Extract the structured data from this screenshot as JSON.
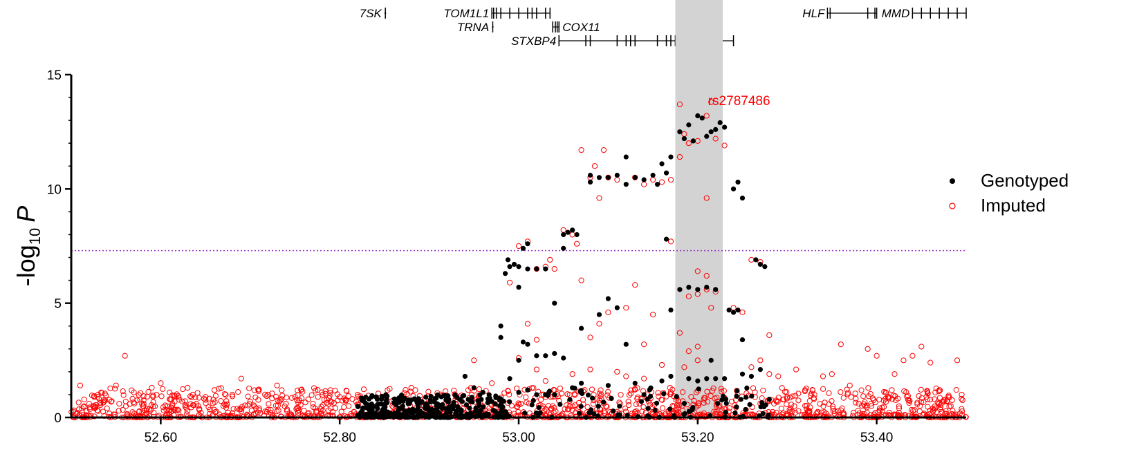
{
  "chart_data": {
    "type": "scatter",
    "title": "",
    "xlabel": "",
    "ylabel": "-log",
    "ylabel_sub": "10",
    "ylabel_italic": "P",
    "xlim": [
      52.5,
      53.5
    ],
    "ylim": [
      0,
      15
    ],
    "x_ticks": [
      52.6,
      52.8,
      53.0,
      53.2,
      53.4
    ],
    "x_tick_labels": [
      "52.60",
      "52.80",
      "53.00",
      "53.20",
      "53.40"
    ],
    "y_ticks": [
      0,
      5,
      10,
      15
    ],
    "y_tick_labels": [
      "0",
      "5",
      "10",
      "15"
    ],
    "threshold": {
      "y": 7.3,
      "color": "#9932cc"
    },
    "highlight_region": {
      "x": [
        53.175,
        53.228
      ],
      "color": "#d3d3d3"
    },
    "annotations": [
      {
        "text": "rs2787486",
        "x": 53.21,
        "y": 13.85,
        "color": "#ff0000"
      }
    ],
    "legend": {
      "position": "right"
    },
    "series": [
      {
        "name": "Genotyped",
        "color": "#000000",
        "marker": "filled-circle",
        "points": [
          [
            52.83,
            0.55
          ],
          [
            52.84,
            0.2
          ],
          [
            52.85,
            0.3
          ],
          [
            52.86,
            0.1
          ],
          [
            52.87,
            0.4
          ],
          [
            52.88,
            0.2
          ],
          [
            52.9,
            0.3
          ],
          [
            52.92,
            0.8
          ],
          [
            52.94,
            1.8
          ],
          [
            52.95,
            1.3
          ],
          [
            52.96,
            1.1
          ],
          [
            52.97,
            0.7
          ],
          [
            52.98,
            4.0
          ],
          [
            52.98,
            3.5
          ],
          [
            52.985,
            6.3
          ],
          [
            52.988,
            6.9
          ],
          [
            52.99,
            6.6
          ],
          [
            52.995,
            6.7
          ],
          [
            53.0,
            5.7
          ],
          [
            53.0,
            2.5
          ],
          [
            52.99,
            1.7
          ],
          [
            53.005,
            7.4
          ],
          [
            53.01,
            7.6
          ],
          [
            53.0,
            6.6
          ],
          [
            53.01,
            6.5
          ],
          [
            53.02,
            6.5
          ],
          [
            53.03,
            6.5
          ],
          [
            53.005,
            3.3
          ],
          [
            53.01,
            3.2
          ],
          [
            53.02,
            2.7
          ],
          [
            53.03,
            2.7
          ],
          [
            53.04,
            2.8
          ],
          [
            53.0,
            1.1
          ],
          [
            53.01,
            1.2
          ],
          [
            53.02,
            1.0
          ],
          [
            53.03,
            1.0
          ],
          [
            53.04,
            1.0
          ],
          [
            53.05,
            8.0
          ],
          [
            53.055,
            8.1
          ],
          [
            53.06,
            8.2
          ],
          [
            53.065,
            8.0
          ],
          [
            53.05,
            7.4
          ],
          [
            53.04,
            5.0
          ],
          [
            53.05,
            2.6
          ],
          [
            53.06,
            1.3
          ],
          [
            53.07,
            3.9
          ],
          [
            53.07,
            1.5
          ],
          [
            53.08,
            10.6
          ],
          [
            53.08,
            10.3
          ],
          [
            53.09,
            10.5
          ],
          [
            53.1,
            10.5
          ],
          [
            53.11,
            10.6
          ],
          [
            53.12,
            11.4
          ],
          [
            53.12,
            10.2
          ],
          [
            53.13,
            10.5
          ],
          [
            53.14,
            10.4
          ],
          [
            53.15,
            10.6
          ],
          [
            53.155,
            10.2
          ],
          [
            53.09,
            4.5
          ],
          [
            53.1,
            5.2
          ],
          [
            53.11,
            4.8
          ],
          [
            53.12,
            3.2
          ],
          [
            53.13,
            1.5
          ],
          [
            53.1,
            1.4
          ],
          [
            53.14,
            1.0
          ],
          [
            53.16,
            11.1
          ],
          [
            53.165,
            10.7
          ],
          [
            53.17,
            11.4
          ],
          [
            53.165,
            7.8
          ],
          [
            53.17,
            4.7
          ],
          [
            53.17,
            1.8
          ],
          [
            53.16,
            1.6
          ],
          [
            53.18,
            12.5
          ],
          [
            53.185,
            12.2
          ],
          [
            53.19,
            12.8
          ],
          [
            53.2,
            13.2
          ],
          [
            53.205,
            13.1
          ],
          [
            53.21,
            12.3
          ],
          [
            53.215,
            12.5
          ],
          [
            53.22,
            12.6
          ],
          [
            53.225,
            12.9
          ],
          [
            53.23,
            12.7
          ],
          [
            53.195,
            12.1
          ],
          [
            53.18,
            5.6
          ],
          [
            53.19,
            5.7
          ],
          [
            53.2,
            5.6
          ],
          [
            53.21,
            5.7
          ],
          [
            53.22,
            5.6
          ],
          [
            53.19,
            1.7
          ],
          [
            53.2,
            1.6
          ],
          [
            53.21,
            1.7
          ],
          [
            53.22,
            1.7
          ],
          [
            53.23,
            1.7
          ],
          [
            53.215,
            2.5
          ],
          [
            53.24,
            10.0
          ],
          [
            53.245,
            10.3
          ],
          [
            53.25,
            9.6
          ],
          [
            53.235,
            4.7
          ],
          [
            53.24,
            4.6
          ],
          [
            53.245,
            4.7
          ],
          [
            53.25,
            3.4
          ],
          [
            53.25,
            1.9
          ],
          [
            53.26,
            1.8
          ],
          [
            53.265,
            6.9
          ],
          [
            53.27,
            6.7
          ],
          [
            53.275,
            6.6
          ],
          [
            53.27,
            2.1
          ],
          [
            53.28,
            0.8
          ]
        ]
      },
      {
        "name": "Imputed",
        "color": "#ff0000",
        "marker": "open-circle",
        "points": [
          [
            52.51,
            1.4
          ],
          [
            52.52,
            0.6
          ],
          [
            52.53,
            1.0
          ],
          [
            52.54,
            0.4
          ],
          [
            52.55,
            1.4
          ],
          [
            52.56,
            2.7
          ],
          [
            52.57,
            1.1
          ],
          [
            52.58,
            0.5
          ],
          [
            52.59,
            1.3
          ],
          [
            52.6,
            1.5
          ],
          [
            52.61,
            0.8
          ],
          [
            52.62,
            0.3
          ],
          [
            52.63,
            1.3
          ],
          [
            52.64,
            0.6
          ],
          [
            52.65,
            0.9
          ],
          [
            52.66,
            1.2
          ],
          [
            52.67,
            0.5
          ],
          [
            52.68,
            1.0
          ],
          [
            52.69,
            1.7
          ],
          [
            52.7,
            0.7
          ],
          [
            52.71,
            0.4
          ],
          [
            52.72,
            1.0
          ],
          [
            52.73,
            1.4
          ],
          [
            52.74,
            0.6
          ],
          [
            52.75,
            0.9
          ],
          [
            52.76,
            0.3
          ],
          [
            52.77,
            0.6
          ],
          [
            52.78,
            1.1
          ],
          [
            52.79,
            0.4
          ],
          [
            52.8,
            0.9
          ],
          [
            52.81,
            0.5
          ],
          [
            52.82,
            1.0
          ],
          [
            52.85,
            0.9
          ],
          [
            52.88,
            1.3
          ],
          [
            52.9,
            0.6
          ],
          [
            52.93,
            0.9
          ],
          [
            52.95,
            2.5
          ],
          [
            52.96,
            0.5
          ],
          [
            52.97,
            1.5
          ],
          [
            52.99,
            5.9
          ],
          [
            53.0,
            7.5
          ],
          [
            53.01,
            7.7
          ],
          [
            53.02,
            6.5
          ],
          [
            53.03,
            6.6
          ],
          [
            53.035,
            6.9
          ],
          [
            53.04,
            6.5
          ],
          [
            53.01,
            4.1
          ],
          [
            53.02,
            3.4
          ],
          [
            53.0,
            2.6
          ],
          [
            53.02,
            2.1
          ],
          [
            53.03,
            1.6
          ],
          [
            53.04,
            1.2
          ],
          [
            53.05,
            8.2
          ],
          [
            53.06,
            8.0
          ],
          [
            53.065,
            7.6
          ],
          [
            53.07,
            6.0
          ],
          [
            53.07,
            11.7
          ],
          [
            53.08,
            10.5
          ],
          [
            53.085,
            11.0
          ],
          [
            53.09,
            9.6
          ],
          [
            53.095,
            11.7
          ],
          [
            53.1,
            10.5
          ],
          [
            53.11,
            10.4
          ],
          [
            53.13,
            10.5
          ],
          [
            53.14,
            10.2
          ],
          [
            53.15,
            10.4
          ],
          [
            53.16,
            10.3
          ],
          [
            53.17,
            10.4
          ],
          [
            53.17,
            7.7
          ],
          [
            53.08,
            3.5
          ],
          [
            53.09,
            4.1
          ],
          [
            53.1,
            4.6
          ],
          [
            53.12,
            4.8
          ],
          [
            53.13,
            5.8
          ],
          [
            53.14,
            3.2
          ],
          [
            53.15,
            4.5
          ],
          [
            53.16,
            2.3
          ],
          [
            53.08,
            2.1
          ],
          [
            53.11,
            2.0
          ],
          [
            53.12,
            1.8
          ],
          [
            53.06,
            1.9
          ],
          [
            53.14,
            1.7
          ],
          [
            53.18,
            13.7
          ],
          [
            53.18,
            11.4
          ],
          [
            53.19,
            12.0
          ],
          [
            53.2,
            12.1
          ],
          [
            53.21,
            13.2
          ],
          [
            53.215,
            13.8
          ],
          [
            53.22,
            12.2
          ],
          [
            53.23,
            11.9
          ],
          [
            53.21,
            9.6
          ],
          [
            53.185,
            12.4
          ],
          [
            53.19,
            5.3
          ],
          [
            53.2,
            5.4
          ],
          [
            53.21,
            5.6
          ],
          [
            53.22,
            5.5
          ],
          [
            53.2,
            6.4
          ],
          [
            53.21,
            6.2
          ],
          [
            53.215,
            4.8
          ],
          [
            53.2,
            3.1
          ],
          [
            53.19,
            2.9
          ],
          [
            53.18,
            3.7
          ],
          [
            53.185,
            2.2
          ],
          [
            53.2,
            2.5
          ],
          [
            53.24,
            4.8
          ],
          [
            53.25,
            4.6
          ],
          [
            53.26,
            6.9
          ],
          [
            53.27,
            6.8
          ],
          [
            53.28,
            3.6
          ],
          [
            53.27,
            2.5
          ],
          [
            53.26,
            2.2
          ],
          [
            53.28,
            1.9
          ],
          [
            53.29,
            1.8
          ],
          [
            53.3,
            0.9
          ],
          [
            53.31,
            2.1
          ],
          [
            53.32,
            1.2
          ],
          [
            53.33,
            0.8
          ],
          [
            53.34,
            1.8
          ],
          [
            53.35,
            1.9
          ],
          [
            53.36,
            3.2
          ],
          [
            53.37,
            1.4
          ],
          [
            53.38,
            0.6
          ],
          [
            53.39,
            3.0
          ],
          [
            53.4,
            2.7
          ],
          [
            53.41,
            1.1
          ],
          [
            53.42,
            1.9
          ],
          [
            53.43,
            2.5
          ],
          [
            53.44,
            2.7
          ],
          [
            53.45,
            3.1
          ],
          [
            53.46,
            2.4
          ],
          [
            53.47,
            1.2
          ],
          [
            53.48,
            0.9
          ],
          [
            53.49,
            2.5
          ],
          [
            53.495,
            1.0
          ]
        ]
      }
    ],
    "genes": [
      {
        "name": "7SK",
        "start": 52.85,
        "end": 52.852,
        "row": 1,
        "exons": [
          52.851
        ],
        "label_side": "left"
      },
      {
        "name": "TOM1L1",
        "start": 52.97,
        "end": 53.035,
        "row": 1,
        "exons": [
          52.97,
          52.972,
          52.975,
          52.98,
          52.99,
          53.0,
          53.01,
          53.015,
          53.02,
          53.03,
          53.035
        ],
        "label_side": "left"
      },
      {
        "name": "TRNA",
        "start": 52.97,
        "end": 52.972,
        "row": 2,
        "exons": [
          52.971
        ],
        "label_side": "left"
      },
      {
        "name": "COX11",
        "start": 53.038,
        "end": 53.045,
        "row": 2,
        "exons": [
          53.038,
          53.041,
          53.043,
          53.045
        ],
        "label_side": "right"
      },
      {
        "name": "STXBP4",
        "start": 53.045,
        "end": 53.24,
        "row": 3,
        "exons": [
          53.045,
          53.075,
          53.08,
          53.11,
          53.12,
          53.125,
          53.13,
          53.155,
          53.165,
          53.17,
          53.175,
          53.205,
          53.218,
          53.24
        ],
        "label_side": "left"
      },
      {
        "name": "HLF",
        "start": 53.345,
        "end": 53.4,
        "row": 1,
        "exons": [
          53.345,
          53.348,
          53.39,
          53.398,
          53.4
        ],
        "label_side": "left"
      },
      {
        "name": "MMD",
        "start": 53.44,
        "end": 53.5,
        "row": 1,
        "exons": [
          53.44,
          53.45,
          53.46,
          53.47,
          53.48,
          53.49,
          53.5
        ],
        "label_side": "left"
      }
    ]
  }
}
